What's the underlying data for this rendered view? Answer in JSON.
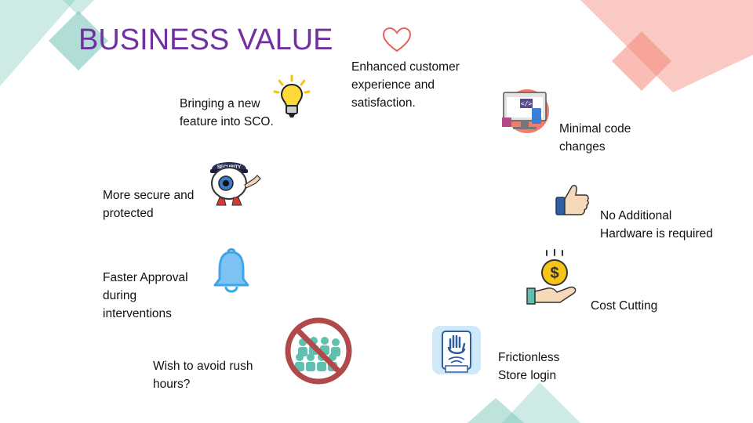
{
  "slide": {
    "title": "BUSINESS VALUE",
    "items": [
      {
        "label": "Enhanced customer\nexperience and\nsatisfaction.",
        "icon": "heart-icon"
      },
      {
        "label": "Bringing a new\nfeature into SCO.",
        "icon": "lightbulb-icon"
      },
      {
        "label": "Minimal code\nchanges",
        "icon": "code-monitor-icon"
      },
      {
        "label": "More secure and\nprotected",
        "icon": "security-eye-icon",
        "badge": "SECURITY"
      },
      {
        "label": "No Additional\nHardware is required",
        "icon": "thumbs-up-icon"
      },
      {
        "label": "Faster Approval\nduring\ninterventions",
        "icon": "bell-icon"
      },
      {
        "label": "Cost Cutting",
        "icon": "coin-hand-icon",
        "symbol": "$"
      },
      {
        "label": "Wish to avoid rush\nhours?",
        "icon": "no-crowd-icon"
      },
      {
        "label": "Frictionless\nStore login",
        "icon": "palm-scanner-icon"
      }
    ]
  },
  "colors": {
    "title": "#7030a0",
    "teal": "#6fc2b4",
    "salmon": "#f4877a",
    "heart": "#e8615b",
    "bell": "#3fa4e8"
  }
}
